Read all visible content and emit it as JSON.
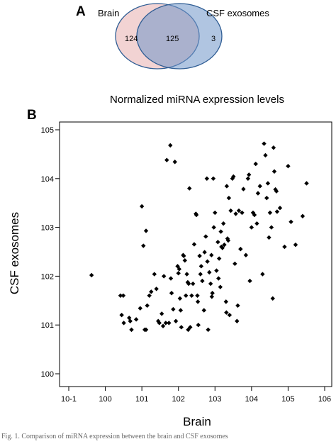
{
  "panel_a": {
    "letter": "A",
    "brain_label": "Brain",
    "csf_label": "CSF exosomes",
    "brain_only": "124",
    "overlap": "125",
    "csf_only": "3",
    "colors": {
      "brain_fill": "#f2d3d3",
      "csf_fill": "#6f96c8",
      "outline": "#2f5d94"
    }
  },
  "panel_b": {
    "letter": "B"
  },
  "caption": "Fig. 1. Comparison of miRNA expression between the brain and CSF exosomes",
  "chart_data": {
    "type": "scatter",
    "title": "Normalized miRNA expression levels",
    "xlabel": "Brain",
    "ylabel": "CSF exosomes",
    "x_scale": "log",
    "y_scale": "log",
    "xlim": [
      0.1,
      1000000
    ],
    "ylim": [
      1,
      100000
    ],
    "x_tick_labels": [
      "10-1",
      "100",
      "101",
      "102",
      "103",
      "104",
      "105",
      "106"
    ],
    "y_tick_labels": [
      "100",
      "101",
      "102",
      "103",
      "104",
      "105"
    ],
    "grid": false,
    "marker_color": "#000000",
    "points": [
      [
        0.42,
        105
      ],
      [
        2.6,
        40
      ],
      [
        3.1,
        40
      ],
      [
        2.8,
        16
      ],
      [
        3.2,
        11
      ],
      [
        4.5,
        14
      ],
      [
        5.2,
        8
      ],
      [
        4.8,
        12
      ],
      [
        7,
        13
      ],
      [
        9,
        22
      ],
      [
        12,
        8
      ],
      [
        13,
        8
      ],
      [
        10,
        2700
      ],
      [
        11,
        420
      ],
      [
        13,
        850
      ],
      [
        14,
        25
      ],
      [
        16,
        40
      ],
      [
        18,
        48
      ],
      [
        22,
        110
      ],
      [
        25,
        55
      ],
      [
        28,
        12
      ],
      [
        30,
        11
      ],
      [
        35,
        17
      ],
      [
        38,
        9.5
      ],
      [
        40,
        100
      ],
      [
        45,
        11
      ],
      [
        48,
        24000
      ],
      [
        55,
        11
      ],
      [
        60,
        48000
      ],
      [
        62,
        90
      ],
      [
        65,
        45
      ],
      [
        72,
        21
      ],
      [
        80,
        22000
      ],
      [
        85,
        12
      ],
      [
        95,
        160
      ],
      [
        100,
        115
      ],
      [
        105,
        140
      ],
      [
        110,
        35
      ],
      [
        115,
        20
      ],
      [
        120,
        9
      ],
      [
        135,
        270
      ],
      [
        140,
        260
      ],
      [
        150,
        210
      ],
      [
        160,
        40
      ],
      [
        170,
        110
      ],
      [
        180,
        75
      ],
      [
        185,
        8
      ],
      [
        190,
        70
      ],
      [
        200,
        6300
      ],
      [
        210,
        9
      ],
      [
        230,
        40
      ],
      [
        250,
        70
      ],
      [
        270,
        450
      ],
      [
        300,
        1900
      ],
      [
        310,
        1800
      ],
      [
        330,
        40
      ],
      [
        340,
        30
      ],
      [
        350,
        10
      ],
      [
        380,
        260
      ],
      [
        400,
        110
      ],
      [
        420,
        160
      ],
      [
        450,
        80
      ],
      [
        500,
        20
      ],
      [
        520,
        310
      ],
      [
        560,
        650
      ],
      [
        600,
        10000
      ],
      [
        620,
        200
      ],
      [
        650,
        8
      ],
      [
        700,
        120
      ],
      [
        760,
        70
      ],
      [
        800,
        270
      ],
      [
        820,
        38
      ],
      [
        850,
        45
      ],
      [
        900,
        10000
      ],
      [
        930,
        1000
      ],
      [
        1000,
        2000
      ],
      [
        1100,
        130
      ],
      [
        1200,
        500
      ],
      [
        1250,
        90
      ],
      [
        1300,
        230
      ],
      [
        1400,
        60
      ],
      [
        1450,
        820
      ],
      [
        1500,
        400
      ],
      [
        1600,
        380
      ],
      [
        1700,
        1200
      ],
      [
        1800,
        440
      ],
      [
        2000,
        30
      ],
      [
        2050,
        18
      ],
      [
        2100,
        7000
      ],
      [
        2200,
        590
      ],
      [
        2300,
        540
      ],
      [
        2400,
        4000
      ],
      [
        2500,
        16
      ],
      [
        2700,
        2200
      ],
      [
        3000,
        10000
      ],
      [
        3200,
        11000
      ],
      [
        3500,
        180
      ],
      [
        3700,
        1900
      ],
      [
        4000,
        12
      ],
      [
        4200,
        25
      ],
      [
        4500,
        2200
      ],
      [
        5000,
        360
      ],
      [
        5500,
        2000
      ],
      [
        6000,
        6100
      ],
      [
        7000,
        270
      ],
      [
        8000,
        10000
      ],
      [
        8500,
        12000
      ],
      [
        9000,
        80
      ],
      [
        10000,
        1000
      ],
      [
        11000,
        2000
      ],
      [
        12000,
        1800
      ],
      [
        13000,
        20000
      ],
      [
        14000,
        1200
      ],
      [
        15000,
        5000
      ],
      [
        17000,
        7000
      ],
      [
        20000,
        110
      ],
      [
        22000,
        52000
      ],
      [
        24000,
        30000
      ],
      [
        26000,
        4000
      ],
      [
        28000,
        8000
      ],
      [
        30000,
        620
      ],
      [
        32000,
        2000
      ],
      [
        35000,
        1000
      ],
      [
        38000,
        35
      ],
      [
        40000,
        43000
      ],
      [
        42000,
        14000
      ],
      [
        45000,
        6000
      ],
      [
        48000,
        5500
      ],
      [
        50000,
        2100
      ],
      [
        60000,
        2500
      ],
      [
        80000,
        400
      ],
      [
        100000,
        18000
      ],
      [
        120000,
        1300
      ],
      [
        160000,
        440
      ],
      [
        250000,
        1700
      ],
      [
        320000,
        8000
      ]
    ]
  }
}
